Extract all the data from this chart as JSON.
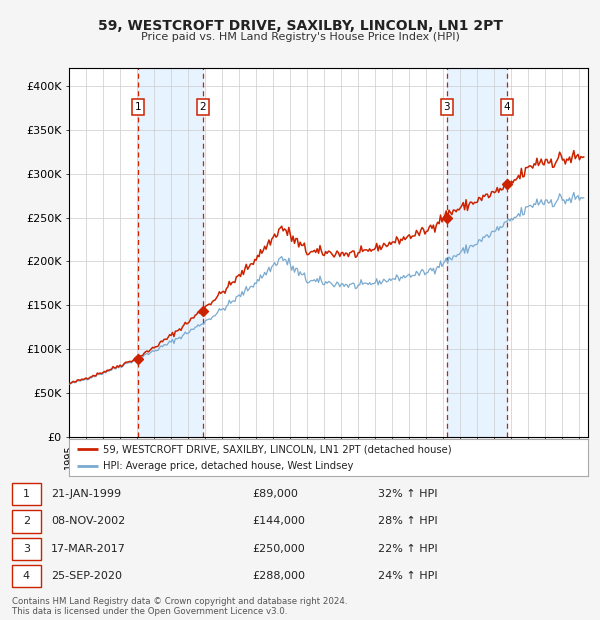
{
  "title": "59, WESTCROFT DRIVE, SAXILBY, LINCOLN, LN1 2PT",
  "subtitle": "Price paid vs. HM Land Registry's House Price Index (HPI)",
  "ylim": [
    0,
    420000
  ],
  "yticks": [
    0,
    50000,
    100000,
    150000,
    200000,
    250000,
    300000,
    350000,
    400000
  ],
  "ytick_labels": [
    "£0",
    "£50K",
    "£100K",
    "£150K",
    "£200K",
    "£250K",
    "£300K",
    "£350K",
    "£400K"
  ],
  "hpi_color": "#7aaad0",
  "price_color": "#cc2200",
  "sale_marker_color": "#cc2200",
  "grid_color": "#cccccc",
  "span_color": "#ddeeff",
  "bg_color": "#f5f5f5",
  "sales": [
    {
      "date_dec": 1999.055,
      "price": 89000,
      "label": "1"
    },
    {
      "date_dec": 2002.853,
      "price": 144000,
      "label": "2"
    },
    {
      "date_dec": 2017.205,
      "price": 250000,
      "label": "3"
    },
    {
      "date_dec": 2020.736,
      "price": 288000,
      "label": "4"
    }
  ],
  "legend_line1": "59, WESTCROFT DRIVE, SAXILBY, LINCOLN, LN1 2PT (detached house)",
  "legend_line2": "HPI: Average price, detached house, West Lindsey",
  "table_rows": [
    [
      "1",
      "21-JAN-1999",
      "£89,000",
      "32% ↑ HPI"
    ],
    [
      "2",
      "08-NOV-2002",
      "£144,000",
      "28% ↑ HPI"
    ],
    [
      "3",
      "17-MAR-2017",
      "£250,000",
      "22% ↑ HPI"
    ],
    [
      "4",
      "25-SEP-2020",
      "£288,000",
      "24% ↑ HPI"
    ]
  ],
  "footnote": "Contains HM Land Registry data © Crown copyright and database right 2024.\nThis data is licensed under the Open Government Licence v3.0.",
  "xstart": 1995.0,
  "xend": 2025.5
}
